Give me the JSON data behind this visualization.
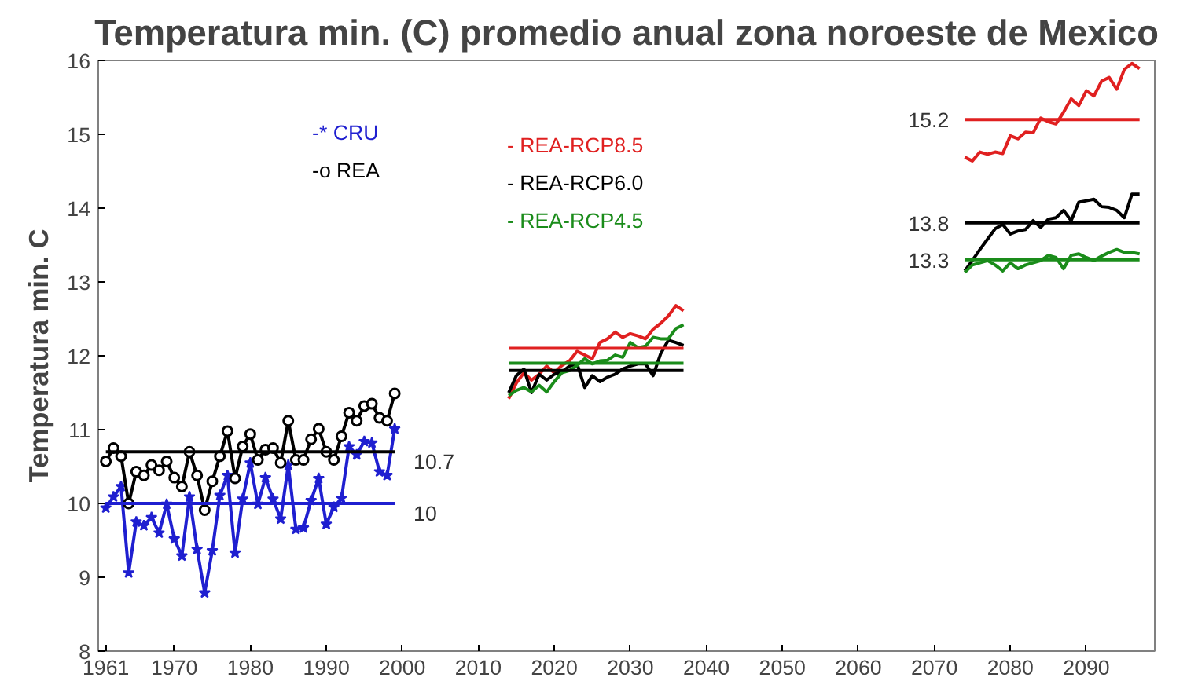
{
  "chart_data": {
    "type": "line",
    "title": "Temperatura min. (C) promedio anual zona noroeste de Mexico",
    "ylabel": "Temperatura min. C",
    "xlim": [
      1960,
      2099
    ],
    "xticks": [
      1961,
      1970,
      1980,
      1990,
      2000,
      2010,
      2020,
      2030,
      2040,
      2050,
      2060,
      2070,
      2080,
      2090
    ],
    "ylim": [
      8,
      16
    ],
    "yticks": [
      8,
      9,
      10,
      11,
      12,
      13,
      14,
      15,
      16
    ],
    "grid": false,
    "series": [
      {
        "name": "-* CRU",
        "color": "#1f1fd0",
        "marker": "star",
        "x": [
          1961,
          1962,
          1963,
          1964,
          1965,
          1966,
          1967,
          1968,
          1969,
          1970,
          1971,
          1972,
          1973,
          1974,
          1975,
          1976,
          1977,
          1978,
          1979,
          1980,
          1981,
          1982,
          1983,
          1984,
          1985,
          1986,
          1987,
          1988,
          1989,
          1990,
          1991,
          1992,
          1993,
          1994,
          1995,
          1996,
          1997,
          1998,
          1999
        ],
        "values": [
          9.94,
          10.09,
          10.23,
          9.06,
          9.75,
          9.7,
          9.81,
          9.6,
          9.99,
          9.52,
          9.29,
          10.09,
          9.38,
          8.79,
          9.36,
          10.11,
          10.38,
          9.33,
          10.06,
          10.55,
          9.99,
          10.35,
          10.06,
          9.79,
          10.52,
          9.65,
          9.67,
          10.04,
          10.34,
          9.72,
          9.95,
          10.07,
          10.77,
          10.66,
          10.84,
          10.82,
          10.43,
          10.38,
          11.01
        ]
      },
      {
        "name": "-o REA",
        "color": "#000000",
        "marker": "circle",
        "x": [
          1961,
          1962,
          1963,
          1964,
          1965,
          1966,
          1967,
          1968,
          1969,
          1970,
          1971,
          1972,
          1973,
          1974,
          1975,
          1976,
          1977,
          1978,
          1979,
          1980,
          1981,
          1982,
          1983,
          1984,
          1985,
          1986,
          1987,
          1988,
          1989,
          1990,
          1991,
          1992,
          1993,
          1994,
          1995,
          1996,
          1997,
          1998,
          1999
        ],
        "values": [
          10.57,
          10.75,
          10.64,
          10.0,
          10.43,
          10.38,
          10.52,
          10.45,
          10.57,
          10.35,
          10.23,
          10.7,
          10.38,
          9.91,
          10.3,
          10.64,
          10.98,
          10.34,
          10.77,
          10.94,
          10.59,
          10.73,
          10.75,
          10.55,
          11.12,
          10.59,
          10.59,
          10.87,
          11.01,
          10.7,
          10.59,
          10.91,
          11.23,
          11.12,
          11.32,
          11.35,
          11.16,
          11.12,
          11.49
        ]
      },
      {
        "name": "- REA-RCP8.5",
        "color": "#e02020",
        "marker": "none",
        "x": [
          2014,
          2015,
          2016,
          2017,
          2018,
          2019,
          2020,
          2021,
          2022,
          2023,
          2024,
          2025,
          2026,
          2027,
          2028,
          2029,
          2030,
          2031,
          2032,
          2033,
          2034,
          2035,
          2036,
          2037
        ],
        "values": [
          11.42,
          11.63,
          11.77,
          11.67,
          11.75,
          11.86,
          11.77,
          11.87,
          11.93,
          12.06,
          12.01,
          11.96,
          12.18,
          12.23,
          12.32,
          12.25,
          12.3,
          12.27,
          12.23,
          12.36,
          12.44,
          12.54,
          12.68,
          12.61
        ]
      },
      {
        "name": "- REA-RCP6.0",
        "color": "#000000",
        "marker": "none",
        "x": [
          2014,
          2015,
          2016,
          2017,
          2018,
          2019,
          2020,
          2021,
          2022,
          2023,
          2024,
          2025,
          2026,
          2027,
          2028,
          2029,
          2030,
          2031,
          2032,
          2033,
          2034,
          2035,
          2036,
          2037
        ],
        "values": [
          11.5,
          11.73,
          11.82,
          11.5,
          11.75,
          11.67,
          11.75,
          11.78,
          11.86,
          11.89,
          11.57,
          11.73,
          11.65,
          11.71,
          11.75,
          11.82,
          11.86,
          11.89,
          11.89,
          11.73,
          12.03,
          12.21,
          12.18,
          12.14
        ]
      },
      {
        "name": "- REA-RCP4.5",
        "color": "#1a8c1a",
        "marker": "none",
        "x": [
          2014,
          2015,
          2016,
          2017,
          2018,
          2019,
          2020,
          2021,
          2022,
          2023,
          2024,
          2025,
          2026,
          2027,
          2028,
          2029,
          2030,
          2031,
          2032,
          2033,
          2034,
          2035,
          2036,
          2037
        ],
        "values": [
          11.46,
          11.53,
          11.57,
          11.51,
          11.6,
          11.51,
          11.65,
          11.77,
          11.8,
          11.87,
          11.96,
          11.89,
          11.93,
          11.94,
          12.01,
          11.98,
          12.18,
          12.11,
          12.13,
          12.25,
          12.23,
          12.23,
          12.37,
          12.42
        ]
      },
      {
        "color": "#e02020",
        "marker": "none",
        "x": [
          2074,
          2075,
          2076,
          2077,
          2078,
          2079,
          2080,
          2081,
          2082,
          2083,
          2084,
          2085,
          2086,
          2087,
          2088,
          2089,
          2090,
          2091,
          2092,
          2093,
          2094,
          2095,
          2096,
          2097
        ],
        "values": [
          14.69,
          14.64,
          14.76,
          14.73,
          14.76,
          14.74,
          14.98,
          14.94,
          15.03,
          15.02,
          15.22,
          15.17,
          15.14,
          15.3,
          15.48,
          15.39,
          15.59,
          15.52,
          15.72,
          15.77,
          15.61,
          15.88,
          15.96,
          15.89
        ]
      },
      {
        "color": "#000000",
        "marker": "none",
        "x": [
          2074,
          2075,
          2076,
          2077,
          2078,
          2079,
          2080,
          2081,
          2082,
          2083,
          2084,
          2085,
          2086,
          2087,
          2088,
          2089,
          2090,
          2091,
          2092,
          2093,
          2094,
          2095,
          2096,
          2097
        ],
        "values": [
          13.15,
          13.29,
          13.44,
          13.58,
          13.72,
          13.78,
          13.65,
          13.69,
          13.71,
          13.83,
          13.74,
          13.85,
          13.87,
          13.97,
          13.83,
          14.08,
          14.1,
          14.12,
          14.02,
          14.01,
          13.97,
          13.87,
          14.19,
          14.19
        ]
      },
      {
        "color": "#1a8c1a",
        "marker": "none",
        "x": [
          2074,
          2075,
          2076,
          2077,
          2078,
          2079,
          2080,
          2081,
          2082,
          2083,
          2084,
          2085,
          2086,
          2087,
          2088,
          2089,
          2090,
          2091,
          2092,
          2093,
          2094,
          2095,
          2096,
          2097
        ],
        "values": [
          13.13,
          13.23,
          13.26,
          13.29,
          13.23,
          13.15,
          13.26,
          13.18,
          13.23,
          13.26,
          13.29,
          13.36,
          13.33,
          13.18,
          13.36,
          13.38,
          13.33,
          13.29,
          13.35,
          13.4,
          13.44,
          13.4,
          13.4,
          13.38
        ]
      },
      {
        "color": "#1f1fd0",
        "marker": "none",
        "x": [
          1961,
          1999
        ],
        "values": [
          10,
          10
        ],
        "value_labels": [
          null,
          "10"
        ]
      },
      {
        "color": "#000000",
        "marker": "none",
        "x": [
          1961,
          1999
        ],
        "values": [
          10.7,
          10.7
        ],
        "value_labels": [
          null,
          "10.7"
        ]
      },
      {
        "color": "#e02020",
        "marker": "none",
        "x": [
          2014,
          2037
        ],
        "values": [
          12.1,
          12.1
        ]
      },
      {
        "color": "#1a8c1a",
        "marker": "none",
        "x": [
          2014,
          2037
        ],
        "values": [
          11.9,
          11.9
        ]
      },
      {
        "color": "#000000",
        "marker": "none",
        "x": [
          2014,
          2037
        ],
        "values": [
          11.8,
          11.8
        ]
      },
      {
        "color": "#e02020",
        "marker": "none",
        "x": [
          2074,
          2097
        ],
        "values": [
          15.2,
          15.2
        ],
        "value_labels": [
          "15.2",
          null
        ]
      },
      {
        "color": "#000000",
        "marker": "none",
        "x": [
          2074,
          2097
        ],
        "values": [
          13.8,
          13.8
        ],
        "value_labels": [
          "13.8",
          null
        ]
      },
      {
        "color": "#1a8c1a",
        "marker": "none",
        "x": [
          2074,
          2097
        ],
        "values": [
          13.3,
          13.3
        ],
        "value_labels": [
          "13.3",
          null
        ]
      }
    ]
  }
}
